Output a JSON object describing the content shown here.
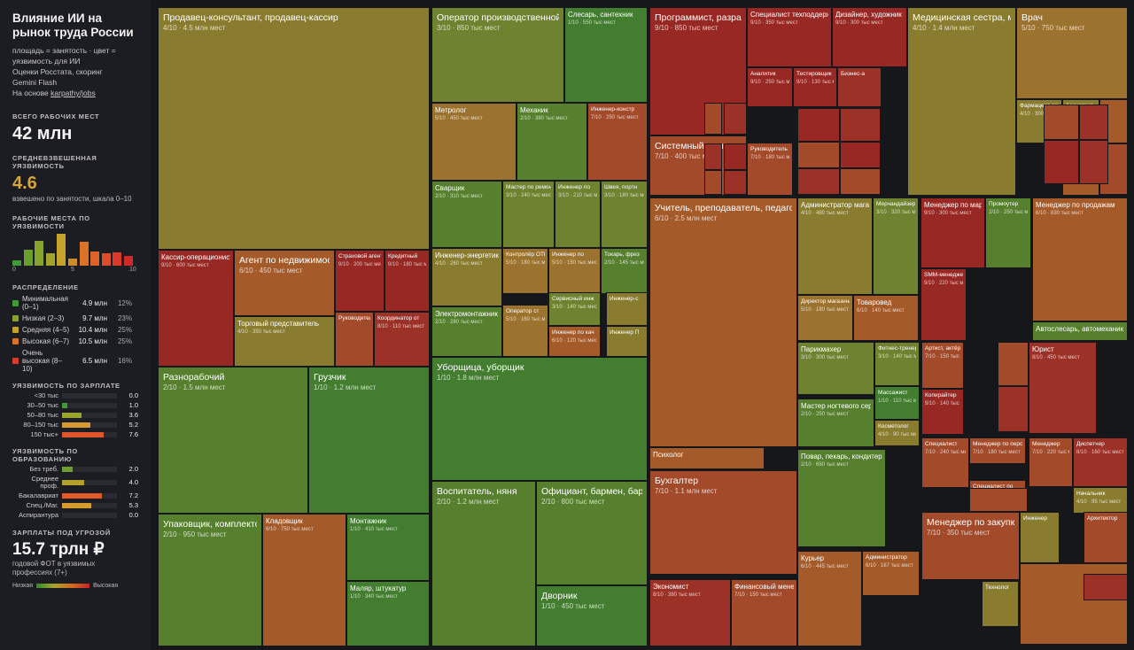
{
  "sidebar": {
    "title": "Влияние ИИ на рынок труда России",
    "desc_lines": [
      "площадь = занятость · цвет =",
      "уязвимость для ИИ",
      "Оценки Росстата, скоринг",
      "Gemini Flash",
      "На основе "
    ],
    "link": "karpathy/jobs",
    "total_label": "ВСЕГО РАБОЧИХ МЕСТ",
    "total_value": "42 млн",
    "avg_label": "СРЕДНЕВЗВЕШЕННАЯ УЯЗВИМОСТЬ",
    "avg_value": "4.6",
    "avg_note": "взвешено по занятости, шкала 0–10",
    "hist_label": "РАБОЧИЕ МЕСТА ПО УЯЗВИМОСТИ",
    "hist_axis": [
      "0",
      "5",
      "10"
    ],
    "dist_label": "РАСПРЕДЕЛЕНИЕ",
    "dist": [
      {
        "label": "Минимальная (0–1)",
        "count": "4.9 млн",
        "pct": "12%",
        "color": "#3f9b34"
      },
      {
        "label": "Низкая (2–3)",
        "count": "9.7 млн",
        "pct": "23%",
        "color": "#86a32b"
      },
      {
        "label": "Средняя (4–5)",
        "count": "10.4 млн",
        "pct": "25%",
        "color": "#c5a22c"
      },
      {
        "label": "Высокая (6–7)",
        "count": "10.5 млн",
        "pct": "25%",
        "color": "#dc7226"
      },
      {
        "label": "Очень высокая (8–10)",
        "count": "6.5 млн",
        "pct": "16%",
        "color": "#d93a2a"
      }
    ],
    "wage_label": "УЯЗВИМОСТЬ ПО ЗАРПЛАТЕ",
    "wages": [
      {
        "label": "<30 тыс",
        "value": "0.0",
        "color": "#3f9b34"
      },
      {
        "label": "30–50 тыс",
        "value": "1.0",
        "color": "#3f9b34"
      },
      {
        "label": "50–80 тыс",
        "value": "3.6",
        "color": "#9aa62b"
      },
      {
        "label": "80–150 тыс",
        "value": "5.2",
        "color": "#d49a2d"
      },
      {
        "label": "150 тыс+",
        "value": "7.6",
        "color": "#e0552a"
      }
    ],
    "edu_label": "УЯЗВИМОСТЬ ПО ОБРАЗОВАНИЮ",
    "edu": [
      {
        "label": "Без треб.",
        "value": "2.0",
        "color": "#6f9d2f"
      },
      {
        "label": "Среднее проф.",
        "value": "4.0",
        "color": "#b3a12c"
      },
      {
        "label": "Бакалавриат",
        "value": "7.2",
        "color": "#e05a2a"
      },
      {
        "label": "Спец./Маг.",
        "value": "5.3",
        "color": "#d69b2d"
      },
      {
        "label": "Аспирантура",
        "value": "0.0",
        "color": "#3f9b34"
      }
    ],
    "salary_label": "ЗАРПЛАТЫ ПОД УГРОЗОЙ",
    "salary_value": "15.7 трлн ₽",
    "salary_note": "годовой ФОТ в уязвимых профессиях (7+)",
    "legend_low": "Низкая",
    "legend_high": "Высокая"
  },
  "chart_data": {
    "type": "treemap",
    "histogram": {
      "bins": [
        0,
        1,
        2,
        3,
        4,
        5,
        6,
        7,
        8,
        9,
        10
      ],
      "values": [
        0.9,
        2.6,
        4.0,
        2.0,
        5.2,
        1.2,
        3.9,
        2.3,
        2.0,
        2.1,
        1.6
      ]
    },
    "tiles": [
      {
        "name": "Продавец-консультант, продавец-кассир",
        "stat": "4/10 · 4.5 млн мест",
        "score": 4
      },
      {
        "name": "Кассир-операционист",
        "stat": "9/10 · 600 тыс мест",
        "score": 9
      },
      {
        "name": "Агент по недвижимости",
        "stat": "6/10 · 450 тыс мест",
        "score": 6
      },
      {
        "name": "Страховой агент",
        "stat": "9/10 · 200 тыс мест",
        "score": 9
      },
      {
        "name": "Кредитный",
        "stat": "9/10 · 180 тыс мест",
        "score": 9
      },
      {
        "name": "Торговый представитель",
        "stat": "4/10 · 350 тыс мест",
        "score": 4
      },
      {
        "name": "Руководитель",
        "stat": "",
        "score": 7
      },
      {
        "name": "Координатор от",
        "stat": "8/10 · 110 тыс мест",
        "score": 8
      },
      {
        "name": "Разнорабочий",
        "stat": "2/10 · 1.5 млн мест",
        "score": 2
      },
      {
        "name": "Грузчик",
        "stat": "1/10 · 1.2 млн мест",
        "score": 1
      },
      {
        "name": "Упаковщик, комплектовщик",
        "stat": "2/10 · 950 тыс мест",
        "score": 2
      },
      {
        "name": "Кладовщик",
        "stat": "6/10 · 750 тыс мест",
        "score": 6
      },
      {
        "name": "Монтажник",
        "stat": "1/10 · 410 тыс мест",
        "score": 1
      },
      {
        "name": "Маляр, штукатур",
        "stat": "1/10 · 340 тыс мест",
        "score": 1
      },
      {
        "name": "Оператор производственной",
        "stat": "3/10 · 850 тыс мест",
        "score": 3
      },
      {
        "name": "Слесарь, сантехник",
        "stat": "1/10 · 550 тыс мест",
        "score": 1
      },
      {
        "name": "Метролог",
        "stat": "5/10 · 450 тыс мест",
        "score": 5
      },
      {
        "name": "Механик",
        "stat": "2/10 · 380 тыс мест",
        "score": 2
      },
      {
        "name": "Инженер-констр",
        "stat": "7/10 · 250 тыс мест",
        "score": 7
      },
      {
        "name": "Сварщик",
        "stat": "2/10 · 310 тыс мест",
        "score": 2
      },
      {
        "name": "Мастер по ремонту",
        "stat": "3/10 · 240 тыс мест",
        "score": 3
      },
      {
        "name": "Инженер по",
        "stat": "3/10 · 210 тыс мест",
        "score": 3
      },
      {
        "name": "Швея, портн",
        "stat": "3/10 · 180 тыс мест",
        "score": 3
      },
      {
        "name": "Инженер-энергетик",
        "stat": "4/10 · 260 тыс мест",
        "score": 4
      },
      {
        "name": "Контролёр ОТК",
        "stat": "5/10 · 180 тыс мест",
        "score": 5
      },
      {
        "name": "Инженер по",
        "stat": "5/10 · 150 тыс мест",
        "score": 5
      },
      {
        "name": "Токарь, фрез",
        "stat": "2/10 · 145 тыс мест",
        "score": 2
      },
      {
        "name": "Электромонтажник",
        "stat": "2/10 · 280 тыс мест",
        "score": 2
      },
      {
        "name": "Оператор ст",
        "stat": "5/10 · 160 тыс мест",
        "score": 5
      },
      {
        "name": "Сервисный инж",
        "stat": "3/10 · 140 тыс мест",
        "score": 3
      },
      {
        "name": "Инженер-с",
        "stat": "",
        "score": 4
      },
      {
        "name": "Инженер по кач",
        "stat": "6/10 · 120 тыс мест",
        "score": 6
      },
      {
        "name": "Инженер П",
        "stat": "",
        "score": 4
      },
      {
        "name": "Уборщица, уборщик",
        "stat": "1/10 · 1.8 млн мест",
        "score": 1
      },
      {
        "name": "Воспитатель, няня",
        "stat": "2/10 · 1.2 млн мест",
        "score": 2
      },
      {
        "name": "Официант, бармен, бариста",
        "stat": "2/10 · 800 тыс мест",
        "score": 2
      },
      {
        "name": "Дворник",
        "stat": "1/10 · 450 тыс мест",
        "score": 1
      },
      {
        "name": "Программист, разработчик",
        "stat": "9/10 · 850 тыс мест",
        "score": 9
      },
      {
        "name": "Специалист техподдержки",
        "stat": "9/10 · 350 тыс мест",
        "score": 9
      },
      {
        "name": "Дизайнер, художник",
        "stat": "9/10 · 300 тыс мест",
        "score": 9
      },
      {
        "name": "Аналитик",
        "stat": "9/10 · 250 тыс мест",
        "score": 9
      },
      {
        "name": "Тестировщик",
        "stat": "9/10 · 130 тыс мест",
        "score": 9
      },
      {
        "name": "Бизнес-а",
        "stat": "",
        "score": 8
      },
      {
        "name": "Системный администратор",
        "stat": "7/10 · 400 тыс мест",
        "score": 7
      },
      {
        "name": "Руководитель",
        "stat": "7/10 · 180 тыс мест",
        "score": 7
      },
      {
        "name": "Медицинская сестра, медбрат",
        "stat": "4/10 · 1.4 млн мест",
        "score": 4
      },
      {
        "name": "Врач",
        "stat": "5/10 · 750 тыс мест",
        "score": 5
      },
      {
        "name": "Фармацевт-провизор",
        "stat": "4/10 · 300 тыс мест",
        "score": 4
      },
      {
        "name": "Ассистент",
        "stat": "",
        "score": 4
      },
      {
        "name": "Заведующ",
        "stat": "",
        "score": 6
      },
      {
        "name": "Главный б",
        "stat": "",
        "score": 6
      },
      {
        "name": "Учитель, преподаватель, педагог",
        "stat": "6/10 · 2.5 млн мест",
        "score": 6
      },
      {
        "name": "Психолог",
        "stat": "",
        "score": 6
      },
      {
        "name": "Бухгалтер",
        "stat": "7/10 · 1.1 млн мест",
        "score": 7
      },
      {
        "name": "Экономист",
        "stat": "8/10 · 380 тыс мест",
        "score": 8
      },
      {
        "name": "Финансовый менеджер",
        "stat": "7/10 · 150 тыс мест",
        "score": 7
      },
      {
        "name": "Администратор магазина",
        "stat": "4/10 · 480 тыс мест",
        "score": 4
      },
      {
        "name": "Мерчандайзер",
        "stat": "3/10 · 320 тыс мест",
        "score": 3
      },
      {
        "name": "Директор магазина",
        "stat": "5/10 · 180 тыс мест",
        "score": 5
      },
      {
        "name": "Товаровед",
        "stat": "6/10 · 140 тыс мест",
        "score": 6
      },
      {
        "name": "Менеджер по маркетингу",
        "stat": "9/10 · 300 тыс мест",
        "score": 9
      },
      {
        "name": "Промоутер",
        "stat": "2/10 · 250 тыс мест",
        "score": 2
      },
      {
        "name": "SMM-менеджер",
        "stat": "9/10 · 220 тыс мест",
        "score": 9
      },
      {
        "name": "Менеджер по продажам",
        "stat": "6/10 · 830 тыс мест",
        "score": 6
      },
      {
        "name": "Автослесарь, автомеханик",
        "stat": "",
        "score": 2
      },
      {
        "name": "Парикмахер",
        "stat": "3/10 · 300 тыс мест",
        "score": 3
      },
      {
        "name": "Фитнес-тренер",
        "stat": "3/10 · 140 тыс мест",
        "score": 3
      },
      {
        "name": "Массажист",
        "stat": "1/10 · 110 тыс мест",
        "score": 1
      },
      {
        "name": "Мастер ногтевого сервиса",
        "stat": "2/10 · 250 тыс мест",
        "score": 2
      },
      {
        "name": "Косметолог",
        "stat": "4/10 · 90 тыс мест",
        "score": 4
      },
      {
        "name": "Повар, пекарь, кондитер",
        "stat": "2/10 · 650 тыс мест",
        "score": 2
      },
      {
        "name": "Курьер",
        "stat": "6/10 · 445 тыс мест",
        "score": 6
      },
      {
        "name": "Администратор",
        "stat": "6/10 · 167 тыс мест",
        "score": 6
      },
      {
        "name": "Артист, актёр",
        "stat": "7/10 · 150 тыс мест",
        "score": 7
      },
      {
        "name": "Копирайтер",
        "stat": "9/10 · 140 тыс мест",
        "score": 9
      },
      {
        "name": "Юрист",
        "stat": "8/10 · 450 тыс мест",
        "score": 8
      },
      {
        "name": "Специалист",
        "stat": "7/10 · 240 тыс мест",
        "score": 7
      },
      {
        "name": "Менеджер по персоналу",
        "stat": "7/10 · 180 тыс мест",
        "score": 7
      },
      {
        "name": "Специалист по",
        "stat": "7/10 · 160 тыс мест",
        "score": 7
      },
      {
        "name": "Менеджер",
        "stat": "7/10 · 220 тыс мест",
        "score": 7
      },
      {
        "name": "Диспетчер",
        "stat": "8/10 · 160 тыс мест",
        "score": 8
      },
      {
        "name": "Начальник",
        "stat": "4/10 · 95 тыс мест",
        "score": 4
      },
      {
        "name": "Менеджер по закупкам",
        "stat": "7/10 · 350 тыс мест",
        "score": 7
      },
      {
        "name": "Инженер",
        "stat": "",
        "score": 4
      },
      {
        "name": "Архитектор",
        "stat": "",
        "score": 7
      },
      {
        "name": "Технолог",
        "stat": "",
        "score": 4
      }
    ]
  }
}
